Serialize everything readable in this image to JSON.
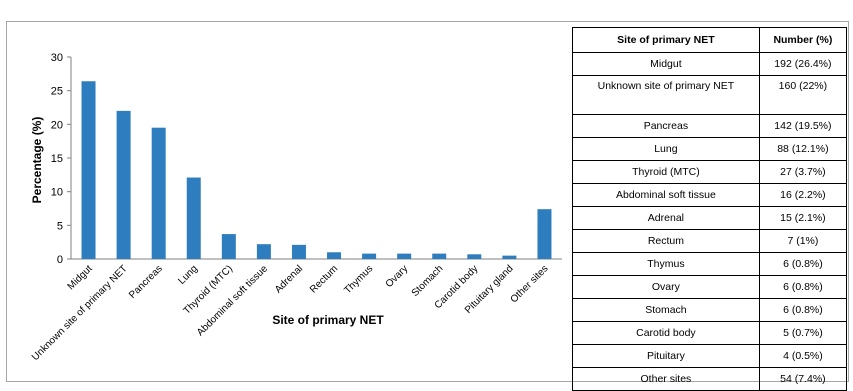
{
  "chart_data": {
    "type": "bar",
    "ylabel": "Percentage (%)",
    "xlabel": "Site of primary NET",
    "ylim": [
      0,
      30
    ],
    "yticks": [
      0,
      5,
      10,
      15,
      20,
      25,
      30
    ],
    "grid": false,
    "categories": [
      "Midgut",
      "Unknown site of primary NET",
      "Pancreas",
      "Lung",
      "Thyroid (MTC)",
      "Abdominal soft tissue",
      "Adrenal",
      "Rectum",
      "Thymus",
      "Ovary",
      "Stomach",
      "Carotid body",
      "Pituitary gland",
      "Other sites"
    ],
    "values": [
      26.4,
      22,
      19.5,
      12.1,
      3.7,
      2.2,
      2.1,
      1,
      0.8,
      0.8,
      0.8,
      0.7,
      0.5,
      7.4
    ],
    "bar_color": "#2e7ebf"
  },
  "table": {
    "headers": [
      "Site of primary NET",
      "Number (%)"
    ],
    "rows": [
      [
        "Midgut",
        "192 (26.4%)"
      ],
      [
        "Unknown site of primary NET",
        "160 (22%)"
      ],
      [
        "Pancreas",
        "142 (19.5%)"
      ],
      [
        "Lung",
        "88 (12.1%)"
      ],
      [
        "Thyroid (MTC)",
        "27 (3.7%)"
      ],
      [
        "Abdominal soft tissue",
        "16 (2.2%)"
      ],
      [
        "Adrenal",
        "15 (2.1%)"
      ],
      [
        "Rectum",
        "7 (1%)"
      ],
      [
        "Thymus",
        "6 (0.8%)"
      ],
      [
        "Ovary",
        "6 (0.8%)"
      ],
      [
        "Stomach",
        "6 (0.8%)"
      ],
      [
        "Carotid body",
        "5 (0.7%)"
      ],
      [
        "Pituitary",
        "4 (0.5%)"
      ],
      [
        "Other sites",
        "54 (7.4%)"
      ]
    ]
  }
}
